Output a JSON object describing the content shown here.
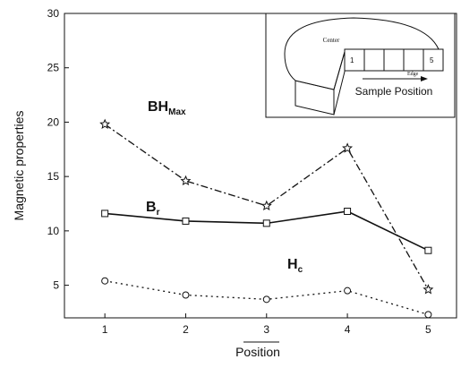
{
  "chart_data": {
    "type": "line",
    "x_label": "Position",
    "y_label": "Magnetic properties",
    "x": [
      1,
      2,
      3,
      4,
      5
    ],
    "xlim": [
      0.5,
      5.35
    ],
    "xticks": [
      1,
      2,
      3,
      4,
      5
    ],
    "ylim": [
      2,
      30
    ],
    "yticks": [
      5,
      10,
      15,
      20,
      25,
      30
    ],
    "series": [
      {
        "label": {
          "text": "BH",
          "sub": "Max"
        },
        "color": "#111111",
        "dash": "dashdot",
        "marker": "star",
        "values": [
          19.8,
          14.6,
          12.3,
          17.6,
          4.6
        ]
      },
      {
        "label": {
          "text": "B",
          "sub": "r"
        },
        "color": "#111111",
        "dash": "solid",
        "marker": "square",
        "values": [
          11.6,
          10.9,
          10.7,
          11.8,
          8.2
        ]
      },
      {
        "label": {
          "text": "H",
          "sub": "c"
        },
        "color": "#111111",
        "dash": "dotted",
        "marker": "circle",
        "values": [
          5.4,
          4.1,
          3.7,
          4.5,
          2.3
        ]
      }
    ],
    "inset": {
      "center": "Center",
      "first": "1",
      "last": "5",
      "edge": "Edge",
      "caption": "Sample Position"
    }
  }
}
